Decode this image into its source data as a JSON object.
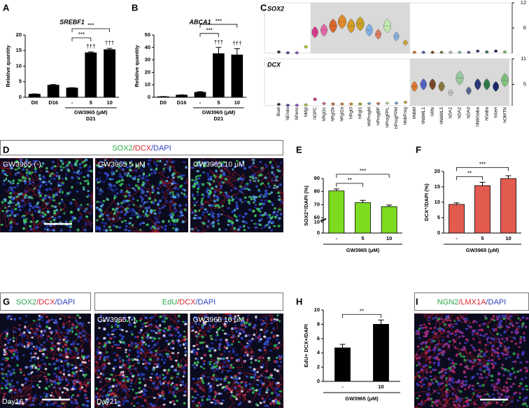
{
  "chart_data": [
    {
      "type": "bar",
      "panel": "A",
      "title": "SREBF1",
      "ylabel": "Relative quantity",
      "categories": [
        "D0",
        "D16",
        "-",
        "5",
        "10"
      ],
      "values": [
        1,
        3.9,
        3,
        14.3,
        15.3
      ],
      "errors": [
        0.1,
        0.2,
        0.1,
        0.3,
        0.4
      ],
      "color": "#000000",
      "ylim": [
        0,
        20
      ],
      "yticks": [
        0,
        5,
        10,
        15,
        20
      ],
      "bar_labels": [
        null,
        null,
        null,
        "†††",
        "†††"
      ],
      "brackets": [
        {
          "from": 2,
          "to": 3,
          "label": "***"
        },
        {
          "from": 2,
          "to": 4,
          "label": "***"
        }
      ],
      "group": {
        "label": "GW3965 (μM)",
        "sublabel": "D21",
        "from": 2,
        "to": 4
      }
    },
    {
      "type": "bar",
      "panel": "B",
      "title": "ABCA1",
      "ylabel": "Relative quantity",
      "categories": [
        "D0",
        "D16",
        "-",
        "5",
        "10"
      ],
      "values": [
        0.5,
        1.8,
        4,
        35,
        34
      ],
      "errors": [
        0.1,
        0.2,
        0.5,
        5,
        5
      ],
      "color": "#000000",
      "ylim": [
        0,
        50
      ],
      "yticks": [
        0,
        10,
        20,
        30,
        40,
        50
      ],
      "bar_labels": [
        null,
        null,
        null,
        "†††",
        "†††"
      ],
      "brackets": [
        {
          "from": 2,
          "to": 3,
          "label": "***"
        },
        {
          "from": 2,
          "to": 4,
          "label": "***"
        }
      ],
      "group": {
        "label": "GW3965 (μM)",
        "sublabel": "D21",
        "from": 2,
        "to": 4
      }
    },
    {
      "type": "violin",
      "panel": "C",
      "categories": [
        "Bset",
        "hEndo",
        "hPeric",
        "hMgl",
        "hOPC",
        "hRgl2c",
        "hRgl2b",
        "hRgl2a",
        "hRgl3",
        "hRgl1",
        "hNProgM",
        "hProgBP",
        "hProgFPL",
        "hProgFPM",
        "hNbProg",
        "hNbM",
        "hNbML1",
        "hRN",
        "hNbML5",
        "hDA1",
        "hDA2",
        "hDA0",
        "hNbGaba",
        "hGaba",
        "hSert",
        "hOMTN"
      ],
      "colors": [
        "#333333",
        "#6b3fa0",
        "#8c5bbf",
        "#b7d334",
        "#d63d8a",
        "#e06aa6",
        "#d9662f",
        "#e08a2c",
        "#d49b2a",
        "#c9a227",
        "#7fb2e5",
        "#d98060",
        "#c3e8b0",
        "#8ab0e0",
        "#d4b13a",
        "#e07a2f",
        "#5064c0",
        "#7a4a2a",
        "#8a7a40",
        "#c8c8c8",
        "#9ac8a0",
        "#5a6a9a",
        "#2c3a7a",
        "#2f7a4a",
        "#1a2a6a",
        "#7fc07a"
      ],
      "rows": [
        {
          "name": "SOX2",
          "values": [
            0.3,
            0.1,
            0.1,
            1.5,
            5,
            5.5,
            6.5,
            7.5,
            6.5,
            7,
            5.5,
            4.5,
            6.5,
            4,
            2.5,
            0.2,
            0.2,
            0.2,
            0.2,
            0.2,
            0.2,
            0.2,
            0.5,
            0.3,
            0.5,
            0.3
          ],
          "ylim": [
            0,
            12
          ],
          "yticks": [
            6,
            12
          ],
          "highlight": [
            "hOPC",
            "hNbProg"
          ]
        },
        {
          "name": "DCX",
          "values": [
            0.3,
            0.1,
            0.1,
            0.2,
            1.5,
            0.5,
            0.4,
            0.4,
            0.4,
            0.4,
            0.5,
            0.5,
            0.6,
            0.6,
            0.8,
            4.5,
            5,
            5,
            4.5,
            3,
            6.5,
            3.5,
            5,
            5,
            4.5,
            6
          ],
          "ylim": [
            0,
            11
          ],
          "yticks": [
            5,
            11
          ],
          "highlight": [
            "hNbM",
            "hOMTN"
          ]
        }
      ]
    },
    {
      "type": "bar",
      "panel": "E",
      "ylabel": "SOX2⁺/DAPI (%)",
      "xlabel": "GW3965 (μM)",
      "categories": [
        "-",
        "5",
        "10"
      ],
      "values": [
        80.5,
        71.5,
        68.5
      ],
      "errors": [
        1.5,
        1.8,
        1.2
      ],
      "color": "#7ddc1f",
      "ylim": [
        0,
        90
      ],
      "yticks": [
        0,
        10,
        60,
        70,
        80,
        90
      ],
      "axis_break": true,
      "brackets": [
        {
          "from": 0,
          "to": 1,
          "label": "**"
        },
        {
          "from": 0,
          "to": 2,
          "label": "***"
        }
      ]
    },
    {
      "type": "bar",
      "panel": "F",
      "ylabel": "DCX⁺/DAPI (%)",
      "xlabel": "GW3965 (μM)",
      "categories": [
        "-",
        "5",
        "10"
      ],
      "values": [
        9.3,
        15.4,
        17.7
      ],
      "errors": [
        0.5,
        1.1,
        0.9
      ],
      "color": "#e35a4f",
      "ylim": [
        0,
        20
      ],
      "yticks": [
        0,
        5,
        10,
        15,
        20
      ],
      "brackets": [
        {
          "from": 0,
          "to": 1,
          "label": "**"
        },
        {
          "from": 0,
          "to": 2,
          "label": "***"
        }
      ]
    },
    {
      "type": "bar",
      "panel": "H",
      "ylabel": "EdU+ DCX+/DAPI",
      "xlabel": "GW3965 (μM)",
      "categories": [
        "-",
        "10"
      ],
      "values": [
        4.7,
        8.0
      ],
      "errors": [
        0.5,
        0.6
      ],
      "color": "#000000",
      "ylim": [
        0,
        10
      ],
      "yticks": [
        0,
        2,
        4,
        6,
        8,
        10
      ],
      "brackets": [
        {
          "from": 0,
          "to": 1,
          "label": "**"
        }
      ]
    }
  ],
  "images": [
    {
      "panel": "D",
      "groups": [
        {
          "caption": [
            {
              "text": "SOX2",
              "color": "#2aa84a"
            },
            {
              "text": "/DCX",
              "color": "#d9262b"
            },
            {
              "text": "/DAPI",
              "color": "#2b3fbf"
            }
          ],
          "tiles": [
            {
              "label": "GW3965 (-)"
            },
            {
              "label": "GW3965 5 μM"
            },
            {
              "label": "GW3965 10 μM"
            }
          ]
        }
      ]
    },
    {
      "panel": "G",
      "groups": [
        {
          "caption": [
            {
              "text": "SOX2",
              "color": "#2aa84a"
            },
            {
              "text": "/DCX",
              "color": "#d9262b"
            },
            {
              "text": "/DAPI",
              "color": "#2b3fbf"
            }
          ],
          "tiles": [
            {
              "footer": "Day16"
            }
          ]
        },
        {
          "caption": [
            {
              "text": "EdU",
              "color": "#2aa84a"
            },
            {
              "text": "/DCX",
              "color": "#d9262b"
            },
            {
              "text": "/DAPI",
              "color": "#2b3fbf"
            }
          ],
          "tiles": [
            {
              "label": "GW3965 (-)",
              "footer": "Day21"
            },
            {
              "label": "GW3965 10 μM"
            }
          ]
        }
      ]
    },
    {
      "panel": "I",
      "groups": [
        {
          "caption": [
            {
              "text": "NGN2",
              "color": "#2aa84a"
            },
            {
              "text": "/LMX1A",
              "color": "#d9262b"
            },
            {
              "text": "/DAPI",
              "color": "#2b3fbf"
            }
          ],
          "tiles": [
            {}
          ]
        }
      ]
    }
  ]
}
